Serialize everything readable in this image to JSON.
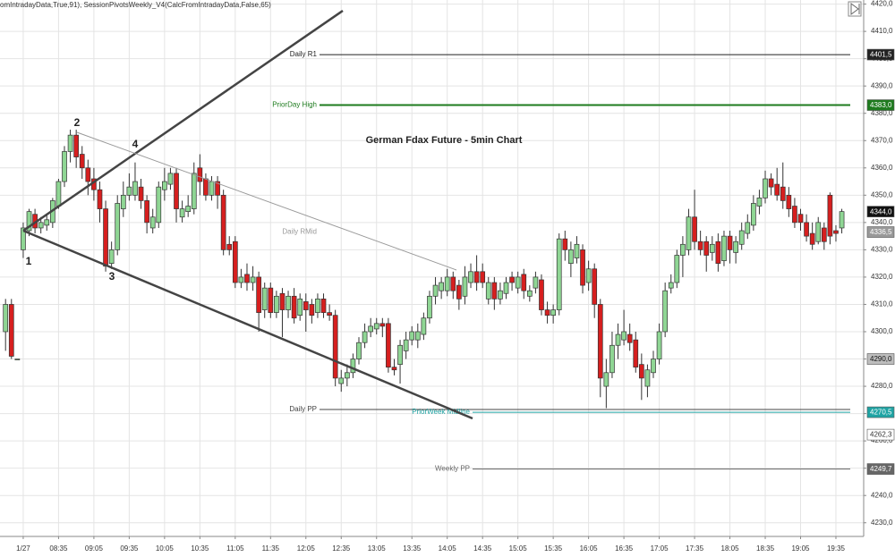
{
  "chart_data": {
    "type": "candlestick",
    "title": "German Fdax Future - 5min Chart",
    "indicator_text": "omIntradayData,True,91),  SessionPivotsWeekly_V4(CalcFromIntradayData,False,65)",
    "annotations": [
      "1",
      "2",
      "3",
      "4"
    ],
    "categories": [
      null,
      null,
      null,
      "1/27",
      null,
      null,
      null,
      null,
      null,
      "08:35",
      null,
      null,
      null,
      null,
      null,
      "09:05",
      null,
      null,
      null,
      null,
      null,
      "09:35",
      null,
      null,
      null,
      null,
      null,
      "10:05",
      null,
      null,
      null,
      null,
      null,
      "10:35",
      null,
      null,
      null,
      null,
      null,
      "11:05",
      null,
      null,
      null,
      null,
      null,
      "11:35",
      null,
      null,
      null,
      null,
      null,
      "12:05",
      null,
      null,
      null,
      null,
      null,
      "12:35",
      null,
      null,
      null,
      null,
      null,
      "13:05",
      null,
      null,
      null,
      null,
      null,
      "13:35",
      null,
      null,
      null,
      null,
      null,
      "14:05",
      null,
      null,
      null,
      null,
      null,
      "14:35",
      null,
      null,
      null,
      null,
      null,
      "15:05",
      null,
      null,
      null,
      null,
      null,
      "15:35",
      null,
      null,
      null,
      null,
      null,
      "16:05",
      null,
      null,
      null,
      null,
      null,
      "16:35",
      null,
      null,
      null,
      null,
      null,
      "17:05",
      null,
      null,
      null,
      null,
      null,
      "17:35",
      null,
      null,
      null,
      null,
      null,
      "18:05",
      null,
      null,
      null,
      null,
      null,
      "18:35",
      null,
      null,
      null,
      null,
      null,
      "19:05",
      null,
      null,
      null,
      null,
      null,
      "19:35",
      null
    ],
    "open": [
      4300,
      4310,
      4290,
      4330,
      4337,
      4343,
      4338,
      4339,
      4340,
      4346,
      4355,
      4366,
      4372,
      4365,
      4360,
      4356,
      4352,
      4345,
      4325,
      4330,
      4345,
      4350,
      4350,
      4353,
      4348,
      4338,
      4340,
      4352,
      4354,
      4358,
      4342,
      4344,
      4345,
      4360,
      4356,
      4350,
      4355,
      4350,
      4332,
      4333,
      4318,
      4321,
      4318,
      4320,
      4308,
      4316,
      4307,
      4314,
      4308,
      4313,
      4306,
      4311,
      4310,
      4307,
      4312,
      4307,
      4306,
      4281,
      4283,
      4285,
      4290,
      4296,
      4300,
      4301,
      4303,
      4303,
      4287,
      4288,
      4293,
      4297,
      4297,
      4299,
      4305,
      4313,
      4315,
      4315,
      4320,
      4317,
      4313,
      4318,
      4322,
      4322,
      4312,
      4318,
      4312,
      4314,
      4320,
      4316,
      4321,
      4313,
      4316,
      4319,
      4308,
      4306,
      4308,
      4334,
      4325,
      4327,
      4330,
      4318,
      4323,
      4310,
      4280,
      4285,
      4295,
      4297,
      4299,
      4297,
      4288,
      4280,
      4285,
      4290,
      4300,
      4316,
      4318,
      4328,
      4330,
      4342,
      4333,
      4333,
      4329,
      4333,
      4326,
      4335,
      4329,
      4332,
      4336,
      4339,
      4346,
      4349,
      4356,
      4354,
      4353,
      4350,
      4346,
      4343,
      4340,
      4336,
      4333,
      4338,
      4350,
      4337,
      4338
    ],
    "high": [
      4312,
      4312,
      4290,
      4340,
      4345,
      4345,
      4342,
      4343,
      4349,
      4356,
      4368,
      4374,
      4374,
      4368,
      4363,
      4360,
      4355,
      4348,
      4333,
      4350,
      4355,
      4358,
      4362,
      4356,
      4350,
      4345,
      4355,
      4360,
      4360,
      4360,
      4348,
      4350,
      4362,
      4365,
      4358,
      4357,
      4357,
      4352,
      4335,
      4335,
      4323,
      4325,
      4324,
      4322,
      4318,
      4318,
      4315,
      4316,
      4315,
      4316,
      4314,
      4314,
      4312,
      4314,
      4314,
      4310,
      4308,
      4286,
      4288,
      4292,
      4298,
      4303,
      4305,
      4305,
      4305,
      4305,
      4290,
      4297,
      4300,
      4302,
      4303,
      4307,
      4315,
      4320,
      4320,
      4323,
      4322,
      4319,
      4324,
      4325,
      4328,
      4325,
      4320,
      4320,
      4318,
      4320,
      4322,
      4322,
      4323,
      4317,
      4322,
      4321,
      4311,
      4310,
      4336,
      4337,
      4333,
      4335,
      4332,
      4326,
      4325,
      4312,
      4290,
      4300,
      4303,
      4308,
      4303,
      4300,
      4292,
      4288,
      4293,
      4303,
      4318,
      4321,
      4330,
      4335,
      4345,
      4352,
      4337,
      4335,
      4335,
      4336,
      4337,
      4337,
      4335,
      4340,
      4343,
      4350,
      4352,
      4359,
      4358,
      4360,
      4362,
      4353,
      4349,
      4345,
      4343,
      4340,
      4342,
      4340,
      4351,
      4339,
      4345
    ],
    "low": [
      4293,
      4290,
      4290,
      4327,
      4335,
      4336,
      4336,
      4337,
      4338,
      4345,
      4353,
      4362,
      4360,
      4356,
      4350,
      4348,
      4340,
      4322,
      4323,
      4328,
      4342,
      4348,
      4348,
      4345,
      4336,
      4336,
      4338,
      4348,
      4352,
      4340,
      4340,
      4342,
      4343,
      4350,
      4348,
      4348,
      4345,
      4328,
      4328,
      4316,
      4316,
      4315,
      4315,
      4300,
      4305,
      4305,
      4305,
      4298,
      4305,
      4303,
      4304,
      4300,
      4303,
      4305,
      4305,
      4304,
      4280,
      4278,
      4280,
      4283,
      4288,
      4294,
      4298,
      4299,
      4298,
      4285,
      4284,
      4281,
      4290,
      4295,
      4294,
      4297,
      4303,
      4310,
      4312,
      4313,
      4312,
      4308,
      4310,
      4316,
      4315,
      4316,
      4310,
      4308,
      4310,
      4312,
      4315,
      4314,
      4312,
      4311,
      4314,
      4306,
      4303,
      4303,
      4306,
      4326,
      4320,
      4325,
      4314,
      4315,
      4305,
      4276,
      4272,
      4283,
      4290,
      4295,
      4293,
      4285,
      4275,
      4276,
      4283,
      4288,
      4298,
      4314,
      4316,
      4320,
      4328,
      4330,
      4328,
      4322,
      4326,
      4322,
      4324,
      4325,
      4325,
      4330,
      4334,
      4337,
      4343,
      4347,
      4350,
      4348,
      4345,
      4342,
      4338,
      4337,
      4333,
      4330,
      4332,
      4330,
      4332,
      4333,
      4336
    ],
    "close": [
      4310,
      4291,
      4290,
      4338,
      4344,
      4338,
      4340,
      4341,
      4348,
      4355,
      4366,
      4372,
      4364,
      4360,
      4355,
      4352,
      4345,
      4324,
      4330,
      4347,
      4350,
      4353,
      4355,
      4348,
      4340,
      4342,
      4353,
      4355,
      4358,
      4345,
      4345,
      4346,
      4358,
      4355,
      4350,
      4355,
      4350,
      4330,
      4330,
      4318,
      4320,
      4318,
      4320,
      4307,
      4316,
      4307,
      4313,
      4308,
      4313,
      4305,
      4312,
      4308,
      4306,
      4312,
      4307,
      4306,
      4283,
      4283,
      4285,
      4290,
      4296,
      4300,
      4302,
      4303,
      4302,
      4287,
      4286,
      4295,
      4297,
      4300,
      4300,
      4305,
      4313,
      4317,
      4318,
      4320,
      4315,
      4312,
      4320,
      4322,
      4318,
      4318,
      4318,
      4312,
      4315,
      4318,
      4318,
      4320,
      4315,
      4315,
      4320,
      4308,
      4306,
      4308,
      4334,
      4330,
      4330,
      4332,
      4317,
      4323,
      4310,
      4283,
      4285,
      4295,
      4299,
      4300,
      4296,
      4287,
      4283,
      4286,
      4290,
      4300,
      4315,
      4318,
      4328,
      4332,
      4342,
      4333,
      4330,
      4328,
      4332,
      4325,
      4335,
      4330,
      4333,
      4337,
      4340,
      4347,
      4349,
      4356,
      4353,
      4350,
      4348,
      4345,
      4340,
      4340,
      4335,
      4332,
      4340,
      4333,
      4335,
      4336,
      4344
    ],
    "up_color": "#8fd694",
    "down_color": "#d61f1f",
    "ylim": [
      4225,
      4421.5
    ],
    "yticks": [
      {
        "value": 4420,
        "label": "4420,0"
      },
      {
        "value": 4410,
        "label": "4410,0"
      },
      {
        "value": 4400,
        "label": "4400,0"
      },
      {
        "value": 4390,
        "label": "4390,0"
      },
      {
        "value": 4380,
        "label": "4380,0"
      },
      {
        "value": 4370,
        "label": "4370,0"
      },
      {
        "value": 4360,
        "label": "4360,0"
      },
      {
        "value": 4350,
        "label": "4350,0"
      },
      {
        "value": 4340,
        "label": "4340,0"
      },
      {
        "value": 4330,
        "label": "4330,0"
      },
      {
        "value": 4320,
        "label": "4320,0"
      },
      {
        "value": 4310,
        "label": "4310,0"
      },
      {
        "value": 4300,
        "label": "4300,0"
      },
      {
        "value": 4290,
        "label": "4290,0"
      },
      {
        "value": 4280,
        "label": "4280,0"
      },
      {
        "value": 4270,
        "label": "4270,0"
      },
      {
        "value": 4260,
        "label": "4260,0"
      },
      {
        "value": 4250,
        "label": "4250,0"
      },
      {
        "value": 4240,
        "label": "4240,0"
      },
      {
        "value": 4230,
        "label": "4230,0"
      }
    ],
    "grid": true,
    "levels": {
      "names": [
        "Daily R1",
        "PriorDay High",
        "Daily RMid",
        "Daily PP",
        "PriorWeek Midline",
        "Weekly PP"
      ],
      "values": [
        4401.5,
        4383.0,
        4336.5,
        4271.5,
        4270.5,
        4249.7
      ],
      "value_labels": [
        "4401,5",
        "4383,0",
        "4336,5",
        null,
        "4270,5",
        "4249,7"
      ],
      "colors": [
        "#222222",
        "#1e7b1e",
        "#999999",
        "#444444",
        "#1fa3a3",
        "#666666"
      ],
      "lines": [
        true,
        true,
        false,
        true,
        true,
        true
      ]
    },
    "price_markers": {
      "values": [
        4344.0,
        4290.0,
        4262.3
      ],
      "value_labels": [
        "4344,0",
        "4290,0",
        "4262,3"
      ],
      "colors": [
        "#111111",
        "#bdbdbd",
        "#ffffff"
      ],
      "text_colors": [
        "#ffffff",
        "#111111",
        "#333333"
      ]
    }
  }
}
